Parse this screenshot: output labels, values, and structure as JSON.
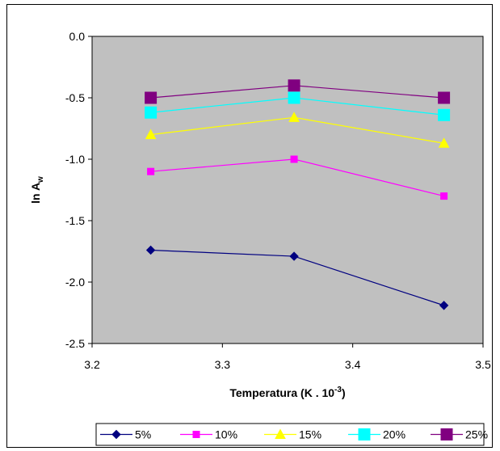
{
  "chart_data": {
    "type": "line",
    "xlabel_main": "Temperatura (K . 10",
    "xlabel_sup": "-3",
    "xlabel_end": ")",
    "ylabel_main": "ln A",
    "ylabel_sub": "w",
    "xlim": [
      3.2,
      3.5
    ],
    "ylim": [
      -2.5,
      0.0
    ],
    "x_ticks": [
      "3.2",
      "3.3",
      "3.4",
      "3.5"
    ],
    "y_ticks": [
      "0.0",
      "-0.5",
      "-1.0",
      "-1.5",
      "-2.0",
      "-2.5"
    ],
    "plot_background": "#c0c0c0",
    "legend_position": "bottom",
    "series": [
      {
        "name": "5%",
        "color": "#000080",
        "marker": "diamond",
        "x": [
          3.245,
          3.355,
          3.47
        ],
        "y": [
          -1.74,
          -1.79,
          -2.19
        ]
      },
      {
        "name": "10%",
        "color": "#ff00ff",
        "marker": "square",
        "x": [
          3.245,
          3.355,
          3.47
        ],
        "y": [
          -1.1,
          -1.0,
          -1.3
        ]
      },
      {
        "name": "15%",
        "color": "#ffff00",
        "marker": "triangle",
        "x": [
          3.245,
          3.355,
          3.47
        ],
        "y": [
          -0.8,
          -0.66,
          -0.87
        ]
      },
      {
        "name": "20%",
        "color": "#00ffff",
        "marker": "square-lg",
        "x": [
          3.245,
          3.355,
          3.47
        ],
        "y": [
          -0.62,
          -0.5,
          -0.64
        ]
      },
      {
        "name": "25%",
        "color": "#800080",
        "marker": "square-lg",
        "x": [
          3.245,
          3.355,
          3.47
        ],
        "y": [
          -0.5,
          -0.4,
          -0.5
        ]
      }
    ]
  }
}
